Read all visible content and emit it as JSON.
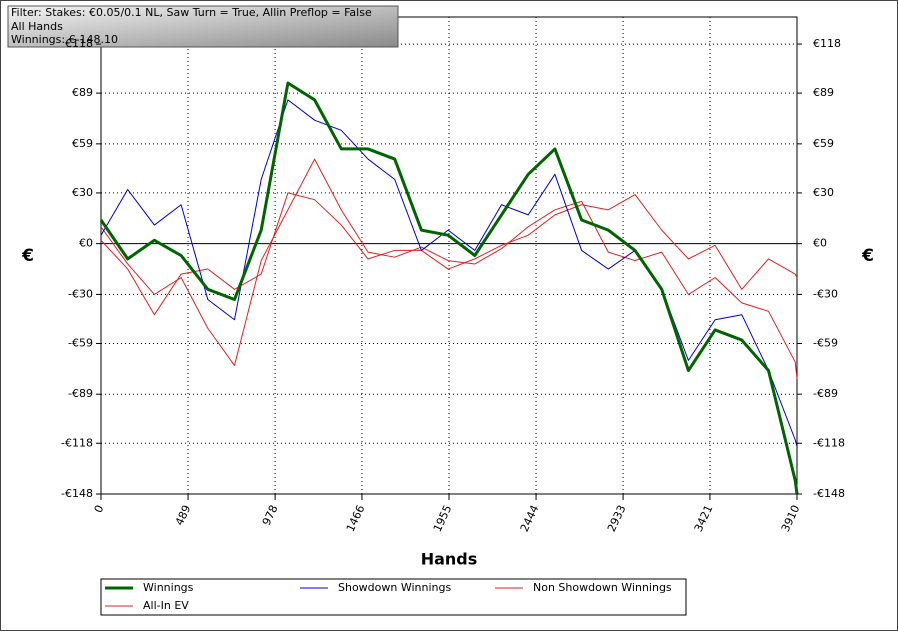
{
  "chart_data": {
    "type": "line",
    "annotations": [
      "Filter: Stakes: €0.05/0.1 NL, Saw Turn = True, Allin Preflop = False",
      "All Hands",
      "Winnings: €-148.10"
    ],
    "xlabel": "Hands",
    "ylabel": "€",
    "x": [
      0,
      150,
      300,
      450,
      600,
      750,
      900,
      1050,
      1200,
      1350,
      1500,
      1650,
      1800,
      1950,
      2100,
      2250,
      2400,
      2550,
      2700,
      2850,
      3000,
      3150,
      3300,
      3450,
      3600,
      3750,
      3900,
      3910
    ],
    "series": [
      {
        "name": "Winnings",
        "color": "#006400",
        "line_width": 3,
        "values": [
          14,
          -9,
          2,
          -7,
          -27,
          -33,
          8,
          95,
          85,
          56,
          56,
          50,
          8,
          5,
          -7,
          17,
          41,
          56,
          14,
          8,
          -4,
          -27,
          -75,
          -51,
          -57,
          -75,
          -140,
          -148
        ]
      },
      {
        "name": "Showdown Winnings",
        "color": "#0000cc",
        "line_width": 1,
        "values": [
          5,
          32,
          11,
          23,
          -33,
          -45,
          38,
          85,
          73,
          67,
          50,
          38,
          -4,
          8,
          -4,
          23,
          17,
          41,
          -4,
          -15,
          -4,
          -27,
          -69,
          -45,
          -42,
          -75,
          -116,
          -120
        ]
      },
      {
        "name": "Non Showdown Winnings",
        "color": "#e02020",
        "line_width": 1,
        "values": [
          2,
          -15,
          -42,
          -18,
          -15,
          -27,
          -18,
          30,
          26,
          11,
          -9,
          -4,
          -4,
          -15,
          -9,
          -1,
          5,
          17,
          23,
          20,
          29,
          8,
          -9,
          -1,
          -27,
          -9,
          -18,
          -20
        ]
      },
      {
        "name": "All-In EV",
        "color": "#e02020",
        "line_width": 1,
        "values": [
          10,
          -12,
          -30,
          -20,
          -50,
          -72,
          -10,
          20,
          50,
          20,
          -5,
          -8,
          -2,
          -10,
          -12,
          -3,
          10,
          20,
          25,
          -5,
          -10,
          -5,
          -30,
          -20,
          -35,
          -40,
          -70,
          -80
        ]
      }
    ],
    "xlim": [
      0,
      3910
    ],
    "ylim": [
      -148,
      134
    ],
    "xticks": [
      0,
      489,
      978,
      1466,
      1955,
      2444,
      2933,
      3421,
      3910
    ],
    "yticks": [
      {
        "value": -148,
        "label": "-€148"
      },
      {
        "value": -118,
        "label": "-€118"
      },
      {
        "value": -89,
        "label": "-€89"
      },
      {
        "value": -59,
        "label": "-€59"
      },
      {
        "value": -30,
        "label": "-€30"
      },
      {
        "value": 0,
        "label": "€0"
      },
      {
        "value": 30,
        "label": "€30"
      },
      {
        "value": 59,
        "label": "€59"
      },
      {
        "value": 89,
        "label": "€89"
      },
      {
        "value": 118,
        "label": "€118"
      }
    ],
    "grid": true
  }
}
